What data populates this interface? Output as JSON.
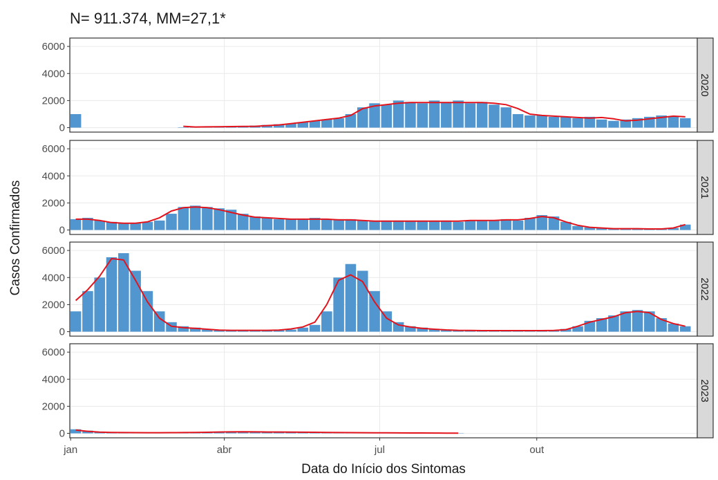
{
  "chart_data": {
    "type": "bar",
    "title": "N= 911.374, MM=27,1*",
    "xlabel": "Data do Início dos Sintomas",
    "ylabel": "Casos Confirmados",
    "bar_color": "#5296cf",
    "line_color": "#e3131b",
    "grid": true,
    "xlim": [
      0.5,
      368
    ],
    "xticks": [
      {
        "value": 1,
        "label": "jan"
      },
      {
        "value": 91,
        "label": "abr"
      },
      {
        "value": 182,
        "label": "jul"
      },
      {
        "value": 274,
        "label": "out"
      }
    ],
    "ylim": [
      -330,
      6620
    ],
    "yticks": [
      0,
      2000,
      4000,
      6000
    ],
    "x": [
      4,
      11,
      18,
      25,
      32,
      39,
      46,
      53,
      60,
      67,
      74,
      81,
      88,
      95,
      102,
      109,
      116,
      123,
      130,
      137,
      144,
      151,
      158,
      165,
      172,
      179,
      186,
      193,
      200,
      207,
      214,
      221,
      228,
      235,
      242,
      249,
      256,
      263,
      270,
      277,
      284,
      291,
      298,
      305,
      312,
      319,
      326,
      333,
      340,
      347,
      354,
      361
    ],
    "panels": [
      {
        "label": "2020",
        "values": [
          1000,
          0,
          0,
          0,
          0,
          0,
          0,
          0,
          0,
          30,
          60,
          80,
          100,
          100,
          120,
          150,
          200,
          250,
          300,
          400,
          500,
          600,
          700,
          1000,
          1500,
          1800,
          1700,
          2000,
          1900,
          1800,
          2000,
          1900,
          2000,
          1800,
          1900,
          1700,
          1500,
          1000,
          900,
          900,
          800,
          800,
          700,
          800,
          600,
          500,
          600,
          700,
          800,
          900,
          800,
          700
        ],
        "ma": [
          null,
          null,
          null,
          null,
          null,
          null,
          null,
          null,
          null,
          100,
          50,
          60,
          70,
          80,
          90,
          100,
          150,
          200,
          300,
          400,
          500,
          600,
          700,
          900,
          1400,
          1600,
          1700,
          1800,
          1850,
          1850,
          1850,
          1850,
          1850,
          1850,
          1850,
          1800,
          1700,
          1400,
          1000,
          900,
          850,
          800,
          750,
          700,
          750,
          650,
          500,
          550,
          650,
          750,
          850,
          800
        ]
      },
      {
        "label": "2021",
        "values": [
          800,
          900,
          700,
          600,
          500,
          500,
          600,
          700,
          1200,
          1700,
          1800,
          1700,
          1600,
          1500,
          1200,
          1000,
          900,
          800,
          800,
          800,
          900,
          800,
          800,
          800,
          700,
          700,
          700,
          700,
          700,
          700,
          700,
          700,
          600,
          700,
          700,
          700,
          800,
          700,
          900,
          1100,
          1000,
          600,
          300,
          200,
          150,
          100,
          100,
          100,
          100,
          100,
          150,
          400
        ],
        "ma": [
          800,
          800,
          700,
          550,
          500,
          500,
          600,
          900,
          1400,
          1650,
          1700,
          1650,
          1500,
          1300,
          1100,
          950,
          900,
          850,
          800,
          800,
          800,
          800,
          750,
          750,
          700,
          650,
          650,
          650,
          650,
          650,
          650,
          650,
          650,
          700,
          700,
          700,
          750,
          750,
          850,
          1000,
          900,
          600,
          350,
          200,
          150,
          100,
          100,
          100,
          80,
          80,
          150,
          400
        ]
      },
      {
        "label": "2022",
        "values": [
          1500,
          3000,
          4000,
          5500,
          5800,
          4500,
          3000,
          1500,
          700,
          400,
          300,
          200,
          150,
          100,
          100,
          100,
          100,
          100,
          150,
          300,
          500,
          1500,
          4000,
          5000,
          4500,
          3000,
          1500,
          700,
          400,
          300,
          200,
          150,
          100,
          100,
          100,
          100,
          100,
          100,
          100,
          100,
          100,
          200,
          400,
          800,
          1000,
          1200,
          1500,
          1600,
          1500,
          1000,
          600,
          400
        ],
        "ma": [
          2300,
          3100,
          4100,
          5400,
          5300,
          3800,
          2200,
          1000,
          400,
          300,
          250,
          180,
          120,
          100,
          100,
          100,
          100,
          120,
          200,
          350,
          700,
          2000,
          3800,
          4200,
          3700,
          2200,
          1000,
          500,
          350,
          250,
          180,
          130,
          100,
          90,
          80,
          80,
          80,
          80,
          80,
          80,
          90,
          150,
          400,
          700,
          900,
          1100,
          1400,
          1500,
          1400,
          900,
          600,
          400
        ]
      },
      {
        "label": "2023",
        "values": [
          300,
          200,
          100,
          80,
          60,
          50,
          50,
          50,
          50,
          60,
          70,
          80,
          100,
          120,
          130,
          120,
          100,
          100,
          100,
          80,
          80,
          60,
          60,
          60,
          50,
          40,
          40,
          30,
          30,
          30,
          30,
          20,
          20,
          null,
          null,
          null,
          null,
          null,
          null,
          null,
          null,
          null,
          null,
          null,
          null,
          null,
          null,
          null,
          null,
          null,
          null,
          null
        ],
        "ma": [
          250,
          150,
          90,
          70,
          60,
          55,
          50,
          50,
          55,
          60,
          70,
          80,
          100,
          110,
          120,
          110,
          100,
          100,
          95,
          85,
          80,
          65,
          60,
          55,
          50,
          45,
          40,
          35,
          30,
          30,
          25,
          20,
          20,
          null,
          null,
          null,
          null,
          null,
          null,
          null,
          null,
          null,
          null,
          null,
          null,
          null,
          null,
          null,
          null,
          null,
          null,
          null
        ]
      }
    ]
  }
}
